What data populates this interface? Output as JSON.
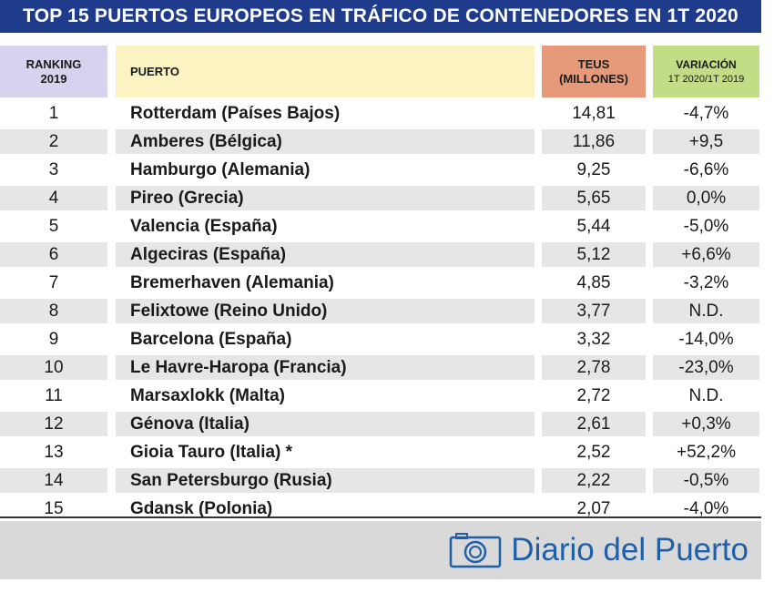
{
  "title": "TOP 15 PUERTOS EUROPEOS EN TRÁFICO DE CONTENEDORES EN 1T 2020",
  "headers": {
    "rank_line1": "RANKING",
    "rank_line2": "2019",
    "port": "PUERTO",
    "teus_line1": "TEUS",
    "teus_line2": "(MILLONES)",
    "var_line1": "VARIACIÓN",
    "var_line2": "1T 2020/1T 2019"
  },
  "colors": {
    "title_bg": "#1f3b8c",
    "rank_header": "#d7d3ee",
    "port_header": "#fbf3c2",
    "teus_header": "#e79a7a",
    "var_header": "#c3dc86",
    "row_shade": "#e6e6e6",
    "brand": "#1f5fa8"
  },
  "chart_data": {
    "type": "table",
    "title": "TOP 15 PUERTOS EUROPEOS EN TRÁFICO DE CONTENEDORES EN 1T 2020",
    "columns": [
      "RANKING 2019",
      "PUERTO",
      "TEUS (MILLONES)",
      "VARIACIÓN 1T 2020/1T 2019"
    ],
    "rows": [
      {
        "rank": "1",
        "port": "Rotterdam (Países Bajos)",
        "teus": "14,81",
        "variation": "-4,7%"
      },
      {
        "rank": "2",
        "port": "Amberes (Bélgica)",
        "teus": "11,86",
        "variation": "+9,5"
      },
      {
        "rank": "3",
        "port": "Hamburgo (Alemania)",
        "teus": "9,25",
        "variation": "-6,6%"
      },
      {
        "rank": "4",
        "port": "Pireo (Grecia)",
        "teus": "5,65",
        "variation": "0,0%"
      },
      {
        "rank": "5",
        "port": "Valencia (España)",
        "teus": "5,44",
        "variation": "-5,0%"
      },
      {
        "rank": "6",
        "port": "Algeciras (España)",
        "teus": "5,12",
        "variation": "+6,6%"
      },
      {
        "rank": "7",
        "port": "Bremerhaven (Alemania)",
        "teus": "4,85",
        "variation": "-3,2%"
      },
      {
        "rank": "8",
        "port": "Felixtowe (Reino Unido)",
        "teus": "3,77",
        "variation": "N.D."
      },
      {
        "rank": "9",
        "port": "Barcelona (España)",
        "teus": "3,32",
        "variation": "-14,0%"
      },
      {
        "rank": "10",
        "port": "Le Havre-Haropa (Francia)",
        "teus": "2,78",
        "variation": "-23,0%"
      },
      {
        "rank": "11",
        "port": "Marsaxlokk (Malta)",
        "teus": "2,72",
        "variation": "N.D."
      },
      {
        "rank": "12",
        "port": "Génova (Italia)",
        "teus": "2,61",
        "variation": "+0,3%"
      },
      {
        "rank": "13",
        "port": "Gioia Tauro (Italia) *",
        "teus": "2,52",
        "variation": "+52,2%"
      },
      {
        "rank": "14",
        "port": "San Petersburgo (Rusia)",
        "teus": "2,22",
        "variation": "-0,5%"
      },
      {
        "rank": "15",
        "port": "Gdansk (Polonia)",
        "teus": "2,07",
        "variation": "-4,0%"
      }
    ]
  },
  "footer": {
    "brand_text": "Diario del Puerto",
    "brand_icon": "camera-icon"
  }
}
